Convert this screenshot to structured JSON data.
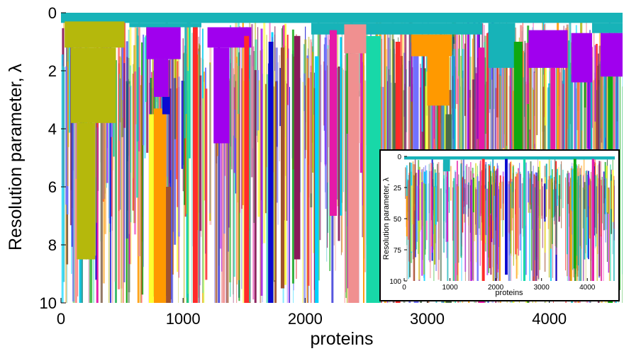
{
  "chart_data": [
    {
      "type": "heatmap",
      "title": "",
      "xlabel": "proteins",
      "ylabel": "Resolution parameter, λ",
      "xlim": [
        0,
        4600
      ],
      "ylim": [
        0,
        10
      ],
      "y_inverted": true,
      "xticks": [
        0,
        1000,
        2000,
        3000,
        4000
      ],
      "yticks": [
        0,
        2,
        4,
        6,
        8,
        10
      ],
      "xtick_labels": [
        "0",
        "1000",
        "2000",
        "3000",
        "4000"
      ],
      "ytick_labels": [
        "0",
        "2",
        "4",
        "6",
        "8",
        "10"
      ],
      "grid": false,
      "legend": "none",
      "colors": [
        "#17b3b8",
        "#b5b80c",
        "#a000ee",
        "#ff2a2a",
        "#ff9900",
        "#e619a8",
        "#0a0ad0",
        "#18d8a8",
        "#f09090",
        "#8a1a5a",
        "#10a810",
        "#ffff30",
        "#a0522d",
        "#00d4ff",
        "#7070ff",
        "#4a6a4a"
      ],
      "blocks": [
        {
          "x0": 0,
          "x1": 4600,
          "y0": 0,
          "y1": 0.35,
          "color": 0
        },
        {
          "x0": 560,
          "x1": 1150,
          "y0": 0.35,
          "y1": 0.5,
          "color": 0
        },
        {
          "x0": 2050,
          "x1": 3450,
          "y0": 0.35,
          "y1": 0.75,
          "color": 0
        },
        {
          "x0": 3500,
          "x1": 3720,
          "y0": 0.35,
          "y1": 1.9,
          "color": 0
        },
        {
          "x0": 4350,
          "x1": 4600,
          "y0": 0.35,
          "y1": 0.7,
          "color": 0
        },
        {
          "x0": 30,
          "x1": 520,
          "y0": 0.3,
          "y1": 1.2,
          "color": 1
        },
        {
          "x0": 80,
          "x1": 450,
          "y0": 1.2,
          "y1": 3.8,
          "color": 1
        },
        {
          "x0": 130,
          "x1": 280,
          "y0": 3.8,
          "y1": 8.5,
          "color": 1
        },
        {
          "x0": 700,
          "x1": 980,
          "y0": 0.5,
          "y1": 1.6,
          "color": 2
        },
        {
          "x0": 760,
          "x1": 880,
          "y0": 1.6,
          "y1": 2.9,
          "color": 2
        },
        {
          "x0": 1200,
          "x1": 1560,
          "y0": 0.5,
          "y1": 1.2,
          "color": 2
        },
        {
          "x0": 1250,
          "x1": 1380,
          "y0": 1.2,
          "y1": 4.5,
          "color": 2
        },
        {
          "x0": 3830,
          "x1": 4150,
          "y0": 0.6,
          "y1": 1.9,
          "color": 2
        },
        {
          "x0": 4180,
          "x1": 4350,
          "y0": 0.7,
          "y1": 2.4,
          "color": 2
        },
        {
          "x0": 4420,
          "x1": 4600,
          "y0": 0.7,
          "y1": 2.2,
          "color": 2
        },
        {
          "x0": 2870,
          "x1": 3200,
          "y0": 0.75,
          "y1": 1.5,
          "color": 4
        },
        {
          "x0": 3000,
          "x1": 3180,
          "y0": 1.5,
          "y1": 3.2,
          "color": 4
        },
        {
          "x0": 760,
          "x1": 860,
          "y0": 3.3,
          "y1": 10,
          "color": 4
        },
        {
          "x0": 2320,
          "x1": 2500,
          "y0": 0.4,
          "y1": 1.4,
          "color": 8
        },
        {
          "x0": 2350,
          "x1": 2440,
          "y0": 1.4,
          "y1": 10,
          "color": 8
        },
        {
          "x0": 2500,
          "x1": 2620,
          "y0": 0.8,
          "y1": 10,
          "color": 7
        },
        {
          "x0": 1080,
          "x1": 1120,
          "y0": 0.5,
          "y1": 10,
          "color": 3
        },
        {
          "x0": 1500,
          "x1": 1540,
          "y0": 0.8,
          "y1": 10,
          "color": 3
        },
        {
          "x0": 830,
          "x1": 890,
          "y0": 2.9,
          "y1": 3.5,
          "color": 6
        },
        {
          "x0": 1700,
          "x1": 1740,
          "y0": 1.0,
          "y1": 10,
          "color": 6
        },
        {
          "x0": 1910,
          "x1": 1960,
          "y0": 0.8,
          "y1": 8.5,
          "color": 9
        },
        {
          "x0": 2200,
          "x1": 2260,
          "y0": 0.6,
          "y1": 7.0,
          "color": 5
        },
        {
          "x0": 3710,
          "x1": 3780,
          "y0": 1.0,
          "y1": 6.0,
          "color": 10
        },
        {
          "x0": 3420,
          "x1": 3470,
          "y0": 1.2,
          "y1": 10,
          "color": 5
        },
        {
          "x0": 3150,
          "x1": 3200,
          "y0": 3.5,
          "y1": 10,
          "color": 15
        },
        {
          "x0": 1800,
          "x1": 1830,
          "y0": 1.2,
          "y1": 9.5,
          "color": 12
        },
        {
          "x0": 2740,
          "x1": 2780,
          "y0": 1.0,
          "y1": 10,
          "color": 3
        },
        {
          "x0": 2080,
          "x1": 2110,
          "y0": 1.5,
          "y1": 10,
          "color": 13
        },
        {
          "x0": 4010,
          "x1": 4050,
          "y0": 1.9,
          "y1": 9.0,
          "color": 5
        },
        {
          "x0": 720,
          "x1": 760,
          "y0": 3.5,
          "y1": 10,
          "color": 11
        },
        {
          "x0": 860,
          "x1": 900,
          "y0": 6.0,
          "y1": 10,
          "color": 12
        },
        {
          "x0": 2890,
          "x1": 2930,
          "y0": 1.5,
          "y1": 10,
          "color": 14
        },
        {
          "x0": 4480,
          "x1": 4520,
          "y0": 2.2,
          "y1": 10,
          "color": 10
        }
      ]
    },
    {
      "type": "heatmap",
      "title": "",
      "xlabel": "proteins",
      "ylabel": "Resolution parameter, λ",
      "xlim": [
        0,
        4600
      ],
      "ylim": [
        0,
        100
      ],
      "y_inverted": true,
      "legend_placement": "inset-bottom-right",
      "xticks": [
        0,
        1000,
        2000,
        3000,
        4000
      ],
      "yticks": [
        0,
        25,
        50,
        75,
        100
      ],
      "xtick_labels": [
        "0",
        "1000",
        "2000",
        "3000",
        "4000"
      ],
      "ytick_labels": [
        "0",
        "25",
        "50",
        "75",
        "100"
      ],
      "grid": false,
      "blocks": [
        {
          "x0": 0,
          "x1": 4600,
          "y0": 0,
          "y1": 2.5,
          "color": 0
        },
        {
          "x0": 850,
          "x1": 1000,
          "y0": 2.5,
          "y1": 12,
          "color": 0
        },
        {
          "x0": 1700,
          "x1": 1760,
          "y0": 2,
          "y1": 100,
          "color": 3
        },
        {
          "x0": 2200,
          "x1": 2260,
          "y0": 2,
          "y1": 95,
          "color": 6
        },
        {
          "x0": 2600,
          "x1": 2650,
          "y0": 2,
          "y1": 100,
          "color": 7
        },
        {
          "x0": 3700,
          "x1": 3760,
          "y0": 2,
          "y1": 90,
          "color": 10
        },
        {
          "x0": 4100,
          "x1": 4150,
          "y0": 2,
          "y1": 100,
          "color": 5
        }
      ]
    }
  ]
}
